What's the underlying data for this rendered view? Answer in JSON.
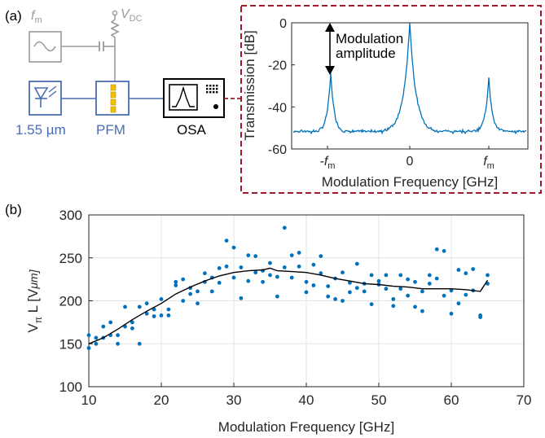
{
  "panel_a": {
    "label": "(a)",
    "fm_symbol": "f",
    "fm_sub": "m",
    "vdc_symbol": "V",
    "vdc_sub": "DC",
    "laser_label": "1.55 µm",
    "pfm_label": "PFM",
    "osa_label": "OSA"
  },
  "panel_b": {
    "label": "(b)"
  },
  "colors": {
    "data_blue": "#0072BD",
    "fit_black": "#000000",
    "setup_blue": "#4a6db3",
    "setup_gray": "#9a9a9a",
    "inset_border": "#a0182e",
    "yellow": "#f2c200"
  },
  "chart_data": [
    {
      "type": "line",
      "ylabel": "Transmission [dB]",
      "xlabel": "Modulation Frequency [GHz]",
      "ylim": [
        -60,
        0
      ],
      "yticks": [
        "0",
        "-20",
        "-40",
        "-60"
      ],
      "xticks": [
        {
          "main": "-f",
          "sub": "m"
        },
        {
          "main": "0",
          "sub": ""
        },
        {
          "main": "f",
          "sub": "m"
        }
      ],
      "annotation": [
        "Modulation",
        "amplitude"
      ],
      "grid": false,
      "series": [
        {
          "peaks": [
            {
              "x": -1,
              "y": -24
            },
            {
              "x": 0,
              "y": 0
            },
            {
              "x": 1,
              "y": -26
            }
          ],
          "floor": -52
        }
      ]
    },
    {
      "type": "scatter",
      "xlabel": "Modulation Frequency [GHz]",
      "ylabel": "V",
      "ylabel_sub": "π",
      "ylabel_rest": "L [V",
      "ylabel_unit": "μm]",
      "xlim": [
        10,
        70
      ],
      "ylim": [
        100,
        300
      ],
      "xticks": [
        "10",
        "20",
        "30",
        "40",
        "50",
        "60",
        "70"
      ],
      "yticks": [
        "100",
        "150",
        "200",
        "250",
        "300"
      ],
      "grid": true,
      "points": [
        [
          10,
          145
        ],
        [
          10,
          160
        ],
        [
          11,
          150
        ],
        [
          11,
          157
        ],
        [
          12,
          157
        ],
        [
          12,
          170
        ],
        [
          13,
          160
        ],
        [
          13,
          175
        ],
        [
          14,
          150
        ],
        [
          14,
          160
        ],
        [
          15,
          193
        ],
        [
          15,
          170
        ],
        [
          16,
          168
        ],
        [
          16,
          175
        ],
        [
          17,
          150
        ],
        [
          17,
          193
        ],
        [
          18,
          185
        ],
        [
          18,
          197
        ],
        [
          19,
          190
        ],
        [
          19,
          182
        ],
        [
          20,
          202
        ],
        [
          20,
          183
        ],
        [
          21,
          190
        ],
        [
          21,
          183
        ],
        [
          22,
          218
        ],
        [
          22,
          222
        ],
        [
          23,
          200
        ],
        [
          23,
          225
        ],
        [
          24,
          208
        ],
        [
          24,
          215
        ],
        [
          25,
          197
        ],
        [
          25,
          211
        ],
        [
          26,
          222
        ],
        [
          26,
          232
        ],
        [
          27,
          227
        ],
        [
          27,
          211
        ],
        [
          28,
          238
        ],
        [
          28,
          221
        ],
        [
          29,
          270
        ],
        [
          29,
          240
        ],
        [
          30,
          227
        ],
        [
          30,
          262
        ],
        [
          31,
          203
        ],
        [
          31,
          239
        ],
        [
          32,
          253
        ],
        [
          32,
          223
        ],
        [
          33,
          252
        ],
        [
          33,
          233
        ],
        [
          34,
          235
        ],
        [
          34,
          222
        ],
        [
          35,
          230
        ],
        [
          35,
          244
        ],
        [
          36,
          205
        ],
        [
          36,
          228
        ],
        [
          37,
          285
        ],
        [
          37,
          239
        ],
        [
          38,
          253
        ],
        [
          38,
          227
        ],
        [
          39,
          256
        ],
        [
          39,
          240
        ],
        [
          40,
          222
        ],
        [
          40,
          210
        ],
        [
          41,
          242
        ],
        [
          41,
          218
        ],
        [
          42,
          252
        ],
        [
          42,
          232
        ],
        [
          43,
          205
        ],
        [
          43,
          217
        ],
        [
          44,
          226
        ],
        [
          44,
          202
        ],
        [
          45,
          200
        ],
        [
          45,
          233
        ],
        [
          46,
          221
        ],
        [
          46,
          210
        ],
        [
          47,
          243
        ],
        [
          47,
          215
        ],
        [
          48,
          211
        ],
        [
          48,
          220
        ],
        [
          49,
          230
        ],
        [
          49,
          196
        ],
        [
          50,
          223
        ],
        [
          50,
          219
        ],
        [
          51,
          214
        ],
        [
          51,
          230
        ],
        [
          52,
          202
        ],
        [
          52,
          194
        ],
        [
          53,
          230
        ],
        [
          53,
          214
        ],
        [
          54,
          225
        ],
        [
          54,
          206
        ],
        [
          55,
          222
        ],
        [
          55,
          193
        ],
        [
          56,
          188
        ],
        [
          56,
          211
        ],
        [
          57,
          230
        ],
        [
          57,
          220
        ],
        [
          58,
          260
        ],
        [
          58,
          226
        ],
        [
          59,
          206
        ],
        [
          59,
          258
        ],
        [
          60,
          185
        ],
        [
          60,
          212
        ],
        [
          61,
          197
        ],
        [
          61,
          236
        ],
        [
          62,
          232
        ],
        [
          62,
          207
        ],
        [
          63,
          212
        ],
        [
          63,
          237
        ],
        [
          64,
          183
        ],
        [
          64,
          181
        ],
        [
          65,
          220
        ],
        [
          65,
          230
        ]
      ],
      "fit": [
        [
          10,
          150
        ],
        [
          12,
          157
        ],
        [
          14,
          167
        ],
        [
          16,
          178
        ],
        [
          18,
          188
        ],
        [
          20,
          197
        ],
        [
          22,
          208
        ],
        [
          24,
          216
        ],
        [
          26,
          223
        ],
        [
          28,
          229
        ],
        [
          30,
          233
        ],
        [
          32,
          235
        ],
        [
          34,
          236
        ],
        [
          35,
          238
        ],
        [
          36,
          235
        ],
        [
          38,
          234
        ],
        [
          40,
          233
        ],
        [
          42,
          230
        ],
        [
          44,
          226
        ],
        [
          46,
          223
        ],
        [
          48,
          220
        ],
        [
          50,
          219
        ],
        [
          52,
          217
        ],
        [
          54,
          216
        ],
        [
          56,
          214
        ],
        [
          58,
          214
        ],
        [
          60,
          214
        ],
        [
          62,
          213
        ],
        [
          64,
          211
        ],
        [
          65,
          224
        ]
      ]
    }
  ]
}
